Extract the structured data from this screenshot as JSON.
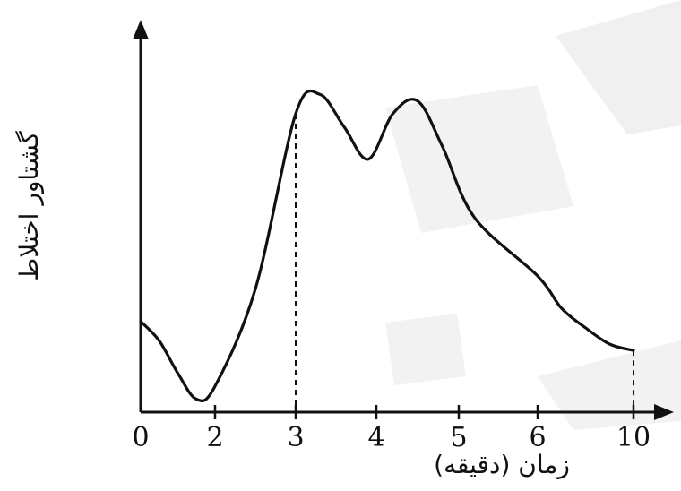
{
  "chart_data": {
    "type": "line",
    "title": "",
    "xlabel": "زمان (دقیقه)",
    "ylabel": "گشتاور اختلاط",
    "x_ticks": [
      "0",
      "2",
      "3",
      "4",
      "5",
      "6",
      "10"
    ],
    "xlim": [
      0,
      10.5
    ],
    "ylim": [
      0,
      1.05
    ],
    "grid": false,
    "legend": "none",
    "guides_at_x": [
      3,
      10
    ],
    "series": [
      {
        "x": [
          0,
          0.5,
          1,
          1.5,
          2,
          2.5,
          3,
          3.3,
          3.6,
          3.9,
          4.2,
          4.5,
          4.8,
          5.2,
          6,
          7,
          8,
          9,
          10
        ],
        "y": [
          0.28,
          0.22,
          0.12,
          0.04,
          0.08,
          0.38,
          0.92,
          0.98,
          0.88,
          0.78,
          0.92,
          0.96,
          0.82,
          0.6,
          0.42,
          0.32,
          0.26,
          0.21,
          0.19
        ]
      }
    ]
  }
}
